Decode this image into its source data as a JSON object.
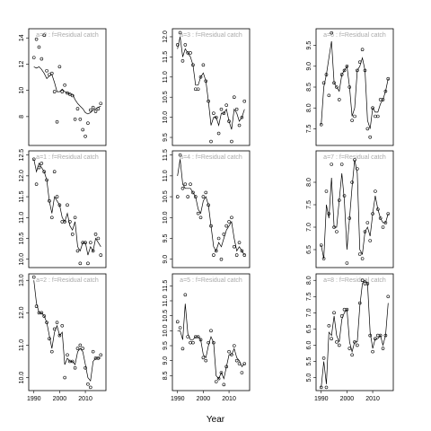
{
  "xlabel": "Year",
  "chart_data": [
    {
      "type": "scatter-line",
      "label": "a=0 : f=Residual catch",
      "x": [
        1990,
        1991,
        1992,
        1993,
        1994,
        1995,
        1996,
        1997,
        1998,
        1999,
        2000,
        2001,
        2002,
        2003,
        2004,
        2005,
        2006,
        2007,
        2008,
        2009,
        2010,
        2011,
        2012,
        2013,
        2014,
        2015,
        2016
      ],
      "values": [
        12.5,
        13.9,
        13.3,
        12.4,
        14.2,
        11.5,
        11.2,
        11.3,
        9.9,
        7.6,
        11.8,
        9.9,
        10.4,
        9.8,
        9.7,
        9.6,
        7.8,
        8.6,
        7.8,
        7.0,
        6.5,
        7.5,
        8.5,
        8.7,
        8.4,
        8.6,
        9.0
      ],
      "smooth": [
        11.8,
        11.7,
        11.8,
        11.6,
        11.3,
        10.9,
        11.1,
        11.2,
        10.6,
        9.9,
        9.9,
        10.1,
        9.9,
        9.8,
        9.7,
        9.7,
        9.3,
        9.0,
        8.8,
        8.6,
        8.3,
        8.2,
        8.3,
        8.5,
        8.6,
        8.7,
        8.8
      ],
      "ylim": [
        5.8,
        14.7
      ],
      "yticks": [
        8,
        10,
        12,
        14
      ]
    },
    {
      "type": "scatter-line",
      "label": "a=1 : f=Residual catch",
      "x": [
        1990,
        1991,
        1992,
        1993,
        1994,
        1995,
        1996,
        1997,
        1998,
        1999,
        2000,
        2001,
        2002,
        2003,
        2004,
        2005,
        2006,
        2007,
        2008,
        2009,
        2010,
        2011,
        2012,
        2013,
        2014,
        2015,
        2016
      ],
      "values": [
        12.4,
        11.8,
        12.2,
        12.3,
        12.1,
        11.9,
        11.4,
        11.0,
        12.1,
        11.5,
        11.3,
        10.9,
        10.9,
        11.3,
        10.9,
        10.6,
        11.0,
        10.2,
        9.9,
        10.4,
        10.4,
        9.9,
        10.4,
        10.2,
        10.6,
        10.5,
        10.1
      ],
      "smooth": [
        12.4,
        12.1,
        12.3,
        12.2,
        12.1,
        11.9,
        11.4,
        11.1,
        11.5,
        11.4,
        11.3,
        11.0,
        10.9,
        11.1,
        10.8,
        10.7,
        10.9,
        10.3,
        10.2,
        10.4,
        10.4,
        10.1,
        10.3,
        10.2,
        10.5,
        10.4,
        10.3
      ],
      "ylim": [
        9.8,
        12.6
      ],
      "yticks": [
        {
          "value": 10,
          "label": "10.0"
        },
        10.5,
        {
          "value": 11,
          "label": "11.0"
        },
        11.5,
        {
          "value": 12,
          "label": "12.0"
        },
        12.5
      ]
    },
    {
      "type": "scatter-line",
      "label": "a=2 : f=Residual catch",
      "x": [
        1990,
        1991,
        1992,
        1993,
        1994,
        1995,
        1996,
        1997,
        1998,
        1999,
        2000,
        2001,
        2002,
        2003,
        2004,
        2005,
        2006,
        2007,
        2008,
        2009,
        2010,
        2011,
        2012,
        2013,
        2014,
        2015,
        2016
      ],
      "values": [
        13.1,
        12.2,
        12.0,
        12.0,
        11.9,
        11.7,
        11.2,
        10.8,
        11.5,
        11.7,
        11.3,
        11.6,
        10.0,
        10.7,
        10.5,
        10.5,
        10.3,
        10.9,
        11.0,
        10.9,
        10.3,
        9.8,
        9.7,
        10.8,
        10.6,
        10.6,
        10.7
      ],
      "smooth": [
        13.0,
        12.3,
        12.0,
        12.0,
        11.9,
        11.7,
        11.3,
        10.9,
        11.4,
        11.6,
        11.3,
        11.4,
        10.4,
        10.6,
        10.5,
        10.5,
        10.4,
        10.8,
        10.9,
        10.8,
        10.4,
        10.0,
        9.9,
        10.5,
        10.6,
        10.6,
        10.6
      ],
      "ylim": [
        9.6,
        13.2
      ],
      "yticks": [
        {
          "value": 10,
          "label": "10.0"
        },
        {
          "value": 11,
          "label": "11.0"
        },
        {
          "value": 12,
          "label": "12.0"
        },
        {
          "value": 13,
          "label": "13.0"
        }
      ],
      "xticks": [
        1990,
        2000,
        2010
      ]
    },
    {
      "type": "scatter-line",
      "label": "a=3 : f=Residual catch",
      "x": [
        1990,
        1991,
        1992,
        1993,
        1994,
        1995,
        1996,
        1997,
        1998,
        1999,
        2000,
        2001,
        2002,
        2003,
        2004,
        2005,
        2006,
        2007,
        2008,
        2009,
        2010,
        2011,
        2012,
        2013,
        2014,
        2015,
        2016
      ],
      "values": [
        11.8,
        12.1,
        11.4,
        11.8,
        11.6,
        11.6,
        11.3,
        10.7,
        10.7,
        11.0,
        11.3,
        10.9,
        10.4,
        9.4,
        10.1,
        10.0,
        9.6,
        10.2,
        10.1,
        10.3,
        9.9,
        9.4,
        10.5,
        10.2,
        9.8,
        10.0,
        10.4
      ],
      "smooth": [
        11.7,
        12.0,
        11.5,
        11.7,
        11.6,
        11.5,
        11.3,
        10.8,
        10.8,
        11.0,
        11.1,
        10.9,
        10.4,
        9.8,
        10.0,
        10.0,
        9.8,
        10.1,
        10.1,
        10.2,
        9.9,
        9.7,
        10.2,
        10.1,
        9.9,
        10.0,
        10.2
      ],
      "ylim": [
        9.3,
        12.2
      ],
      "yticks": [
        9.5,
        {
          "value": 10,
          "label": "10.0"
        },
        10.5,
        {
          "value": 11,
          "label": "11.0"
        },
        11.5,
        {
          "value": 12,
          "label": "12.0"
        }
      ]
    },
    {
      "type": "scatter-line",
      "label": "a=4 : f=Residual catch",
      "x": [
        1990,
        1991,
        1992,
        1993,
        1994,
        1995,
        1996,
        1997,
        1998,
        1999,
        2000,
        2001,
        2002,
        2003,
        2004,
        2005,
        2006,
        2007,
        2008,
        2009,
        2010,
        2011,
        2012,
        2013,
        2014,
        2015,
        2016
      ],
      "values": [
        10.5,
        11.5,
        10.7,
        10.8,
        10.5,
        10.8,
        10.6,
        10.5,
        10.1,
        10.0,
        10.5,
        10.6,
        10.3,
        9.8,
        9.1,
        9.2,
        9.5,
        9.0,
        9.6,
        9.8,
        9.9,
        10.0,
        9.3,
        9.1,
        9.4,
        9.2,
        9.1
      ],
      "smooth": [
        11.0,
        11.4,
        10.8,
        10.7,
        10.7,
        10.7,
        10.6,
        10.5,
        10.2,
        10.1,
        10.4,
        10.5,
        10.3,
        9.8,
        9.3,
        9.2,
        9.4,
        9.3,
        9.5,
        9.7,
        9.8,
        9.9,
        9.5,
        9.2,
        9.3,
        9.2,
        9.1
      ],
      "ylim": [
        8.8,
        11.6
      ],
      "yticks": [
        {
          "value": 9,
          "label": "9.0"
        },
        9.5,
        {
          "value": 10,
          "label": "10.0"
        },
        10.5,
        {
          "value": 11,
          "label": "11.0"
        },
        11.5
      ]
    },
    {
      "type": "scatter-line",
      "label": "a=5 : f=Residual catch",
      "x": [
        1990,
        1991,
        1992,
        1993,
        1994,
        1995,
        1996,
        1997,
        1998,
        1999,
        2000,
        2001,
        2002,
        2003,
        2004,
        2005,
        2006,
        2007,
        2008,
        2009,
        2010,
        2011,
        2012,
        2013,
        2014,
        2015,
        2016
      ],
      "values": [
        10.3,
        10.1,
        9.4,
        11.2,
        9.8,
        9.6,
        9.6,
        9.8,
        9.8,
        9.7,
        9.1,
        9.0,
        9.6,
        10.0,
        9.6,
        8.3,
        8.4,
        8.6,
        8.2,
        8.8,
        9.3,
        9.2,
        9.5,
        9.0,
        8.9,
        8.6,
        8.9
      ],
      "smooth": [
        10.0,
        10.0,
        9.7,
        10.9,
        9.9,
        9.7,
        9.7,
        9.8,
        9.8,
        9.7,
        9.2,
        9.1,
        9.5,
        9.8,
        9.6,
        8.5,
        8.4,
        8.6,
        8.4,
        8.8,
        9.2,
        9.2,
        9.4,
        9.1,
        9.0,
        8.8,
        8.9
      ],
      "ylim": [
        8.0,
        11.9
      ],
      "yticks": [
        8.5,
        {
          "value": 9,
          "label": "9.0"
        },
        9.5,
        {
          "value": 10,
          "label": "10.0"
        },
        10.5,
        {
          "value": 11,
          "label": "11.0"
        },
        11.5
      ],
      "xticks": [
        1990,
        2000,
        2010
      ]
    },
    {
      "type": "scatter-line",
      "label": "a=6 : f=Residual catch",
      "x": [
        1990,
        1991,
        1992,
        1993,
        1994,
        1995,
        1996,
        1997,
        1998,
        1999,
        2000,
        2001,
        2002,
        2003,
        2004,
        2005,
        2006,
        2007,
        2008,
        2009,
        2010,
        2011,
        2012,
        2013,
        2014,
        2015,
        2016
      ],
      "values": [
        7.6,
        8.6,
        8.8,
        8.3,
        9.8,
        8.6,
        8.5,
        8.2,
        8.8,
        8.9,
        9.0,
        8.5,
        7.7,
        7.8,
        8.9,
        9.1,
        9.4,
        8.9,
        7.5,
        7.3,
        8.0,
        7.8,
        7.8,
        8.2,
        8.2,
        8.4,
        8.7
      ],
      "smooth": [
        7.6,
        8.5,
        8.8,
        9.2,
        9.6,
        8.6,
        8.5,
        8.4,
        8.8,
        8.9,
        9.0,
        8.5,
        7.8,
        8.0,
        8.9,
        9.0,
        9.2,
        8.9,
        7.7,
        7.5,
        8.0,
        7.9,
        7.9,
        8.1,
        8.2,
        8.4,
        8.7
      ],
      "ylim": [
        7.1,
        9.9
      ],
      "yticks": [
        7.5,
        {
          "value": 8,
          "label": "8.0"
        },
        8.5,
        {
          "value": 9,
          "label": "9.0"
        },
        9.5
      ]
    },
    {
      "type": "scatter-line",
      "label": "a=7 : f=Residual catch",
      "x": [
        1990,
        1991,
        1992,
        1993,
        1994,
        1995,
        1996,
        1997,
        1998,
        1999,
        2000,
        2001,
        2002,
        2003,
        2004,
        2005,
        2006,
        2007,
        2008,
        2009,
        2010,
        2011,
        2012,
        2013,
        2014,
        2015,
        2016
      ],
      "values": [
        6.6,
        6.3,
        7.8,
        7.3,
        8.4,
        7.0,
        6.9,
        7.6,
        8.4,
        7.7,
        6.2,
        7.2,
        8.0,
        8.5,
        8.3,
        6.4,
        6.3,
        6.9,
        7.1,
        6.7,
        7.3,
        7.8,
        7.4,
        7.2,
        7.0,
        7.1,
        7.3
      ],
      "smooth": [
        6.6,
        6.3,
        7.5,
        7.2,
        8.1,
        7.0,
        7.0,
        7.6,
        8.2,
        7.6,
        6.5,
        7.2,
        7.9,
        8.5,
        8.2,
        6.5,
        6.4,
        6.9,
        7.0,
        6.8,
        7.3,
        7.7,
        7.4,
        7.2,
        7.1,
        7.1,
        7.3
      ],
      "ylim": [
        6.1,
        8.7
      ],
      "yticks": [
        6.5,
        {
          "value": 7,
          "label": "7.0"
        },
        7.5,
        {
          "value": 8,
          "label": "8.0"
        }
      ]
    },
    {
      "type": "scatter-line",
      "label": "a=8 : f=Residual catch",
      "x": [
        1990,
        1991,
        1992,
        1993,
        1994,
        1995,
        1996,
        1997,
        1998,
        1999,
        2000,
        2001,
        2002,
        2003,
        2004,
        2005,
        2006,
        2007,
        2008,
        2009,
        2010,
        2011,
        2012,
        2013,
        2014,
        2015,
        2016
      ],
      "values": [
        4.7,
        5.6,
        4.7,
        6.6,
        6.2,
        7.0,
        6.1,
        6.0,
        6.9,
        7.1,
        7.1,
        5.9,
        5.7,
        6.1,
        6.0,
        7.3,
        8.0,
        7.9,
        7.9,
        6.3,
        5.8,
        6.2,
        6.3,
        6.3,
        5.9,
        6.3,
        7.5
      ],
      "smooth": [
        4.7,
        5.5,
        4.8,
        6.4,
        6.3,
        6.9,
        6.3,
        6.1,
        6.8,
        7.0,
        7.1,
        6.1,
        5.8,
        6.1,
        6.1,
        7.2,
        7.9,
        8.0,
        7.9,
        6.4,
        5.9,
        6.2,
        6.2,
        6.3,
        6.0,
        6.3,
        7.3
      ],
      "ylim": [
        4.6,
        8.2
      ],
      "yticks": [
        {
          "value": 5,
          "label": "5.0"
        },
        5.5,
        {
          "value": 6,
          "label": "6.0"
        },
        6.5,
        {
          "value": 7,
          "label": "7.0"
        },
        7.5,
        {
          "value": 8,
          "label": "8.0"
        }
      ],
      "xticks": [
        1990,
        2000,
        2010
      ]
    }
  ]
}
